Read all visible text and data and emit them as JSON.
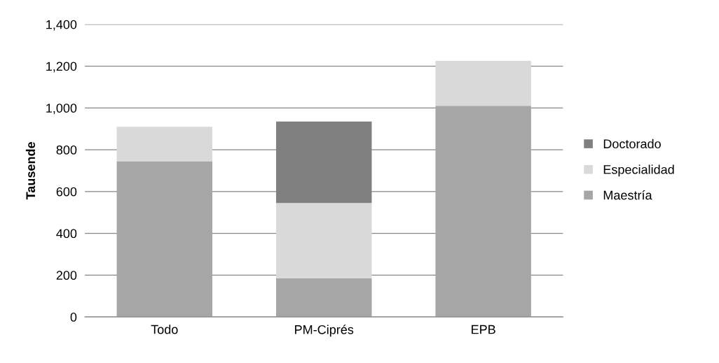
{
  "chart_data": {
    "type": "bar",
    "stacked": true,
    "ylabel": "Tausende",
    "categories": [
      "Todo",
      "PM-Ciprés",
      "EPB"
    ],
    "series": [
      {
        "name": "Maestría",
        "color": "#a6a6a6",
        "values": [
          745,
          185,
          1010
        ]
      },
      {
        "name": "Especialidad",
        "color": "#d9d9d9",
        "values": [
          165,
          360,
          215
        ]
      },
      {
        "name": "Doctorado",
        "color": "#808080",
        "values": [
          null,
          390,
          null
        ]
      }
    ],
    "ylim": [
      0,
      1400
    ],
    "yticks": [
      0,
      200,
      400,
      600,
      800,
      {
        "value": 1000,
        "label": "1,000"
      },
      {
        "value": 1200,
        "label": "1,200"
      },
      {
        "value": 1400,
        "label": "1,400"
      }
    ],
    "grid": "y",
    "legend": "right"
  }
}
